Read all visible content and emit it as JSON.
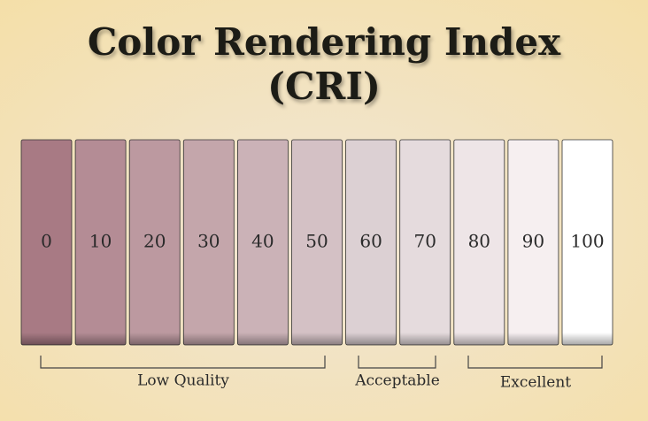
{
  "title_lines": [
    "Color Rendering Index",
    "(CRI)"
  ],
  "swatches": [
    {
      "label": "0",
      "color": "#a87a84"
    },
    {
      "label": "10",
      "color": "#b48c95"
    },
    {
      "label": "20",
      "color": "#bc99a0"
    },
    {
      "label": "30",
      "color": "#c4a6ab"
    },
    {
      "label": "40",
      "color": "#cbb2b7"
    },
    {
      "label": "50",
      "color": "#d4c1c5"
    },
    {
      "label": "60",
      "color": "#dcd0d3"
    },
    {
      "label": "70",
      "color": "#e5dbdd"
    },
    {
      "label": "80",
      "color": "#eee5e7"
    },
    {
      "label": "90",
      "color": "#f6eff0"
    },
    {
      "label": "100",
      "color": "#ffffff"
    }
  ],
  "groups": [
    "Low Quality",
    "Acceptable",
    "Excellent"
  ]
}
